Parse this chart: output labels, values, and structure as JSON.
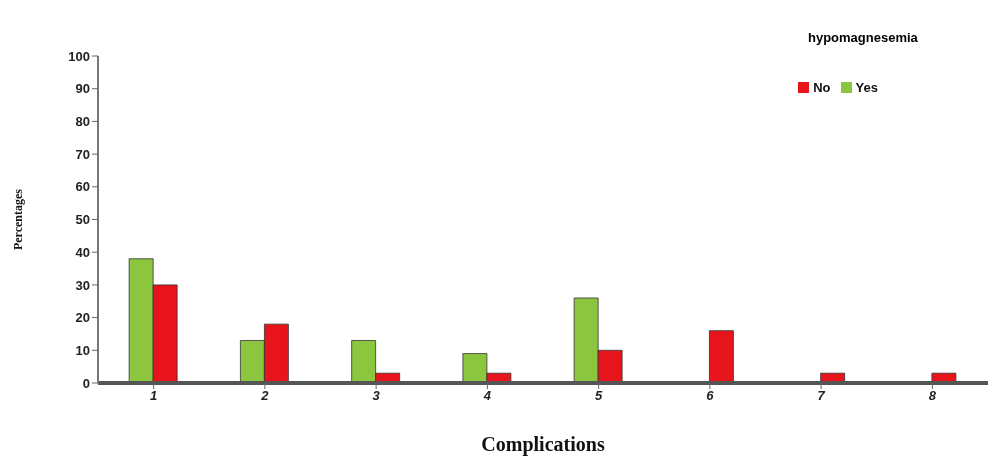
{
  "chart_data": {
    "type": "bar",
    "title": "hypomagnesemia",
    "xlabel": "Complications",
    "ylabel": "Percentages",
    "categories": [
      "1",
      "2",
      "3",
      "4",
      "5",
      "6",
      "7",
      "8"
    ],
    "series": [
      {
        "name": "Yes",
        "color": "#8cc63f",
        "values": [
          38,
          13,
          13,
          9,
          26,
          0,
          0,
          0
        ]
      },
      {
        "name": "No",
        "color": "#e8141c",
        "values": [
          30,
          18,
          3,
          3,
          10,
          16,
          3,
          3
        ]
      }
    ],
    "ylim": [
      0,
      100
    ],
    "yticks": [
      0,
      10,
      20,
      30,
      40,
      50,
      60,
      70,
      80,
      90,
      100
    ],
    "grid": false,
    "legend": "top right"
  }
}
